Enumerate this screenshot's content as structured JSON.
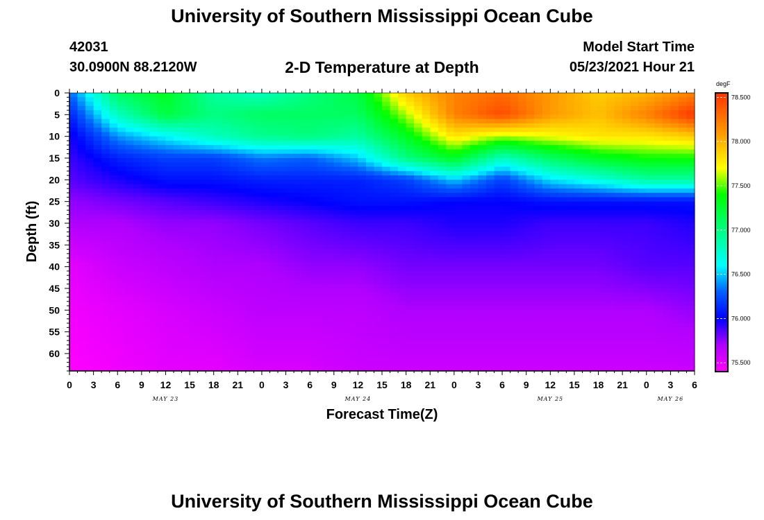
{
  "header": {
    "title": "University of Southern Mississippi Ocean Cube",
    "station_id": "42031",
    "coordinates": "30.0900N  88.2120W",
    "chart_title": "2-D Temperature at Depth",
    "model_start_label": "Model Start Time",
    "model_start_value": "05/23/2021 Hour 21"
  },
  "footer": {
    "title": "University of Southern Mississippi Ocean Cube"
  },
  "chart_data": {
    "type": "heatmap",
    "title": "2-D Temperature at Depth",
    "xlabel": "Forecast Time(Z)",
    "ylabel": "Depth (ft)",
    "x_tick_labels": [
      "0",
      "3",
      "6",
      "9",
      "12",
      "15",
      "18",
      "21",
      "0",
      "3",
      "6",
      "9",
      "12",
      "15",
      "18",
      "21",
      "0",
      "3",
      "6",
      "9",
      "12",
      "15",
      "18",
      "21",
      "0",
      "3",
      "6"
    ],
    "x_range_hours": [
      0,
      78
    ],
    "day_labels": [
      {
        "label": "MAY 23",
        "hour": 12
      },
      {
        "label": "MAY 24",
        "hour": 36
      },
      {
        "label": "MAY 25",
        "hour": 60
      },
      {
        "label": "MAY 26",
        "hour": 75
      }
    ],
    "y_tick_labels": [
      "0",
      "5",
      "10",
      "15",
      "20",
      "25",
      "30",
      "35",
      "40",
      "45",
      "50",
      "55",
      "60"
    ],
    "ylim": [
      64,
      0
    ],
    "colorbar": {
      "unit": "degF",
      "range": [
        75.4,
        78.55
      ],
      "tick_labels": [
        "78.500",
        "78.000",
        "77.500",
        "77.000",
        "76.500",
        "76.000",
        "75.500"
      ],
      "color_stops": [
        {
          "value": 75.4,
          "color": "#ff00ff"
        },
        {
          "value": 75.7,
          "color": "#b000ff"
        },
        {
          "value": 76.0,
          "color": "#0000ff"
        },
        {
          "value": 76.3,
          "color": "#0060ff"
        },
        {
          "value": 76.6,
          "color": "#00ffff"
        },
        {
          "value": 77.0,
          "color": "#00ff80"
        },
        {
          "value": 77.4,
          "color": "#00ff00"
        },
        {
          "value": 77.7,
          "color": "#ffff00"
        },
        {
          "value": 78.1,
          "color": "#ff9900"
        },
        {
          "value": 78.55,
          "color": "#ff3300"
        }
      ]
    },
    "depths_ft": [
      0,
      5,
      10,
      15,
      20,
      25,
      30,
      40,
      50,
      64
    ],
    "times_hours": [
      0,
      6,
      12,
      18,
      24,
      30,
      36,
      42,
      48,
      54,
      60,
      66,
      72,
      78
    ],
    "temperature_degF": [
      [
        76.3,
        77.1,
        77.3,
        76.9,
        76.8,
        77.0,
        77.2,
        77.9,
        78.2,
        78.3,
        78.1,
        77.9,
        78.0,
        78.2
      ],
      [
        76.1,
        76.8,
        77.2,
        77.0,
        77.1,
        77.1,
        77.1,
        77.6,
        78.2,
        78.45,
        78.1,
        77.95,
        78.2,
        78.55
      ],
      [
        75.95,
        76.4,
        76.6,
        76.8,
        76.95,
        77.0,
        76.9,
        77.3,
        77.8,
        77.6,
        77.7,
        77.8,
        77.8,
        77.9
      ],
      [
        75.9,
        76.1,
        76.2,
        76.2,
        76.35,
        76.3,
        76.5,
        77.0,
        77.3,
        76.8,
        77.1,
        77.3,
        77.4,
        77.4
      ],
      [
        75.85,
        75.95,
        76.05,
        76.05,
        76.1,
        76.1,
        76.1,
        76.2,
        76.5,
        76.2,
        76.55,
        76.7,
        76.9,
        76.9
      ],
      [
        75.75,
        75.8,
        75.85,
        75.9,
        75.95,
        76.0,
        76.05,
        76.05,
        76.0,
        76.0,
        76.05,
        76.05,
        76.05,
        76.05
      ],
      [
        75.7,
        75.7,
        75.75,
        75.75,
        75.8,
        75.85,
        75.9,
        75.9,
        75.95,
        75.95,
        75.9,
        75.9,
        75.9,
        75.95
      ],
      [
        75.5,
        75.6,
        75.65,
        75.7,
        75.7,
        75.75,
        75.75,
        75.8,
        75.8,
        75.8,
        75.8,
        75.8,
        75.85,
        75.85
      ],
      [
        75.45,
        75.5,
        75.55,
        75.6,
        75.65,
        75.65,
        75.65,
        75.7,
        75.7,
        75.7,
        75.7,
        75.7,
        75.7,
        75.75
      ],
      [
        75.4,
        75.45,
        75.5,
        75.5,
        75.55,
        75.55,
        75.6,
        75.6,
        75.6,
        75.6,
        75.6,
        75.6,
        75.6,
        75.6
      ]
    ]
  }
}
